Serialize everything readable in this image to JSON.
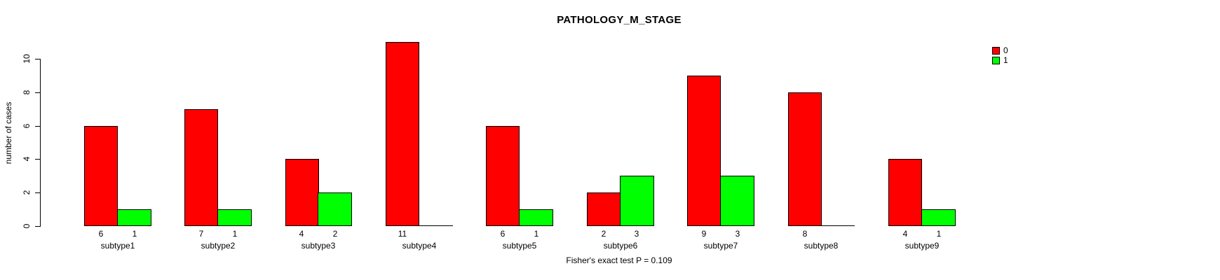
{
  "chart_data": {
    "type": "bar",
    "title": "PATHOLOGY_M_STAGE",
    "ylabel": "number of cases",
    "xlabel": "",
    "footnote": "Fisher's exact test P = 0.109",
    "categories": [
      "subtype1",
      "subtype2",
      "subtype3",
      "subtype4",
      "subtype5",
      "subtype6",
      "subtype7",
      "subtype8",
      "subtype9"
    ],
    "series": [
      {
        "name": "0",
        "color": "#ff0000",
        "values": [
          6,
          7,
          4,
          11,
          6,
          2,
          9,
          8,
          4
        ]
      },
      {
        "name": "1",
        "color": "#00ff00",
        "values": [
          1,
          1,
          2,
          0,
          1,
          3,
          3,
          0,
          1
        ]
      }
    ],
    "bar_value_labels": {
      "subtype1": [
        6,
        1
      ],
      "subtype2": [
        7,
        1
      ],
      "subtype3": [
        4,
        2
      ],
      "subtype4": [
        11,
        null
      ],
      "subtype5": [
        6,
        1
      ],
      "subtype6": [
        2,
        3
      ],
      "subtype7": [
        9,
        3
      ],
      "subtype8": [
        8,
        null
      ],
      "subtype9": [
        4,
        1
      ]
    },
    "yticks": [
      0,
      2,
      4,
      6,
      8,
      10
    ],
    "ylim": [
      0,
      11
    ],
    "grid": false,
    "legend_position": "top-right",
    "legend_items": [
      {
        "label": "0",
        "color": "#ff0000"
      },
      {
        "label": "1",
        "color": "#00ff00"
      }
    ],
    "colors": {
      "background": "#ffffff",
      "axis": "#000000",
      "text": "#000000"
    }
  }
}
